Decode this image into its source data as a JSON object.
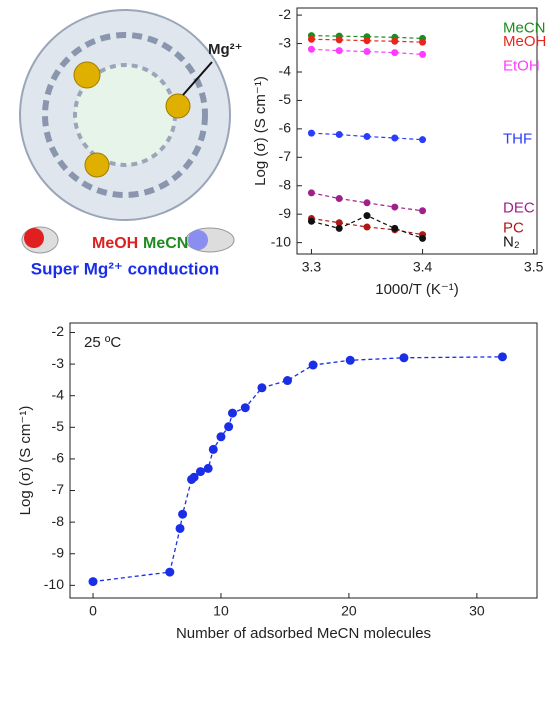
{
  "illustration": {
    "ion_label": "Mg²⁺",
    "molecule_labels": [
      "MeOH",
      "MeCN"
    ],
    "caption": "Super Mg²⁺ conduction"
  },
  "chart_data": [
    {
      "type": "scatter",
      "xlabel": "1000/T (K⁻¹)",
      "ylabel": "Log (σ) (S cm⁻¹)",
      "x": [
        3.3,
        3.325,
        3.35,
        3.375,
        3.4
      ],
      "xlim": [
        3.287,
        3.503
      ],
      "xticks": [
        3.3,
        3.4,
        3.5
      ],
      "ylim": [
        -10.4,
        -1.75
      ],
      "yticks": [
        -2,
        -3,
        -4,
        -5,
        -6,
        -7,
        -8,
        -9,
        -10
      ],
      "series": [
        {
          "name": "MeCN",
          "color": "#1e8c1e",
          "values": [
            -2.72,
            -2.74,
            -2.76,
            -2.78,
            -2.82
          ]
        },
        {
          "name": "MeOH",
          "color": "#e8261e",
          "values": [
            -2.85,
            -2.87,
            -2.9,
            -2.92,
            -2.95
          ]
        },
        {
          "name": "EtOH",
          "color": "#ff3cff",
          "values": [
            -3.2,
            -3.25,
            -3.28,
            -3.32,
            -3.38
          ]
        },
        {
          "name": "THF",
          "color": "#2a3cff",
          "values": [
            -6.15,
            -6.2,
            -6.27,
            -6.32,
            -6.38
          ]
        },
        {
          "name": "DEC",
          "color": "#a0208a",
          "values": [
            -8.25,
            -8.45,
            -8.6,
            -8.75,
            -8.88
          ]
        },
        {
          "name": "PC",
          "color": "#b01818",
          "values": [
            -9.15,
            -9.3,
            -9.45,
            -9.55,
            -9.72
          ]
        },
        {
          "name": "N₂",
          "color": "#111111",
          "values": [
            -9.25,
            -9.5,
            -9.05,
            -9.5,
            -9.85
          ]
        }
      ]
    },
    {
      "type": "line",
      "xlabel": "Number of adsorbed MeCN molecules",
      "ylabel": "Log (σ) (S cm⁻¹)",
      "annotation": "25 ºC",
      "color": "#1a2ee8",
      "x": [
        0,
        6.0,
        6.8,
        7.0,
        7.7,
        7.9,
        8.4,
        9.0,
        9.4,
        10.0,
        10.6,
        10.9,
        11.9,
        13.2,
        15.2,
        17.2,
        20.1,
        24.3,
        32.0
      ],
      "values": [
        -9.88,
        -9.58,
        -8.2,
        -7.75,
        -6.65,
        -6.58,
        -6.4,
        -6.3,
        -5.7,
        -5.3,
        -4.98,
        -4.55,
        -4.38,
        -3.75,
        -3.52,
        -3.03,
        -2.88,
        -2.8,
        -2.77
      ],
      "xlim": [
        -1.8,
        34.7
      ],
      "xticks": [
        0,
        10,
        20,
        30
      ],
      "ylim": [
        -10.4,
        -1.7
      ],
      "yticks": [
        -2,
        -3,
        -4,
        -5,
        -6,
        -7,
        -8,
        -9,
        -10
      ]
    }
  ]
}
